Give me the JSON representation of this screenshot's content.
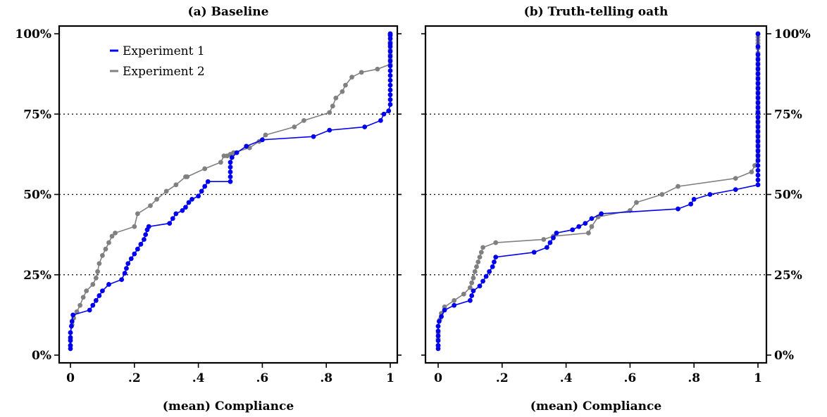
{
  "chart_data": [
    {
      "type": "line",
      "title": "(a) Baseline",
      "xlabel": "(mean) Compliance",
      "ylabel": "",
      "xlim": [
        0,
        1
      ],
      "ylim": [
        0,
        100
      ],
      "xticks": [
        0,
        0.2,
        0.4,
        0.6,
        0.8,
        1
      ],
      "xtick_labels": [
        "0",
        ".2",
        ".4",
        ".6",
        ".8",
        "1"
      ],
      "yticks": [
        0,
        25,
        50,
        75,
        100
      ],
      "ytick_labels": [
        "0%",
        "25%",
        "50%",
        "75%",
        "100%"
      ],
      "y_axis_side": "left",
      "grid": "dotted horizontal at 25%, 50%, 75%",
      "legend": "top-left",
      "series": [
        {
          "name": "Experiment 1",
          "color": "#0000ee",
          "x": [
            0,
            0,
            0,
            0,
            0,
            0.003,
            0.005,
            0.008,
            0.06,
            0.07,
            0.08,
            0.09,
            0.1,
            0.12,
            0.16,
            0.17,
            0.175,
            0.18,
            0.19,
            0.2,
            0.21,
            0.22,
            0.23,
            0.235,
            0.24,
            0.245,
            0.31,
            0.32,
            0.33,
            0.35,
            0.36,
            0.37,
            0.38,
            0.4,
            0.41,
            0.42,
            0.43,
            0.5,
            0.5,
            0.5,
            0.5,
            0.5,
            0.505,
            0.52,
            0.55,
            0.6,
            0.76,
            0.81,
            0.92,
            0.97,
            0.98,
            0.995,
            1,
            1,
            1,
            1,
            1,
            1,
            1,
            1,
            1,
            1,
            1,
            1,
            1,
            1,
            1,
            1,
            1
          ],
          "y": [
            2,
            3,
            4.5,
            5.5,
            7,
            9,
            10.5,
            12.5,
            14,
            15.5,
            17,
            18.5,
            20,
            22,
            23.5,
            25.5,
            27,
            28.5,
            30,
            31.5,
            33,
            34.5,
            36,
            37.5,
            39,
            40,
            41,
            42.5,
            44,
            45,
            46,
            47.5,
            48.5,
            49.5,
            51,
            52.5,
            54,
            54,
            55.5,
            57,
            58.5,
            60,
            61.5,
            63,
            65,
            67,
            68,
            70,
            71,
            73,
            75,
            76,
            78,
            79.5,
            81,
            82.5,
            84,
            85.5,
            87,
            88.5,
            90,
            91.5,
            93,
            94.5,
            96,
            97,
            98.5,
            99.5,
            100
          ]
        },
        {
          "name": "Experiment 2",
          "color": "#808080",
          "x": [
            0,
            0,
            0,
            0.005,
            0.01,
            0.02,
            0.03,
            0.04,
            0.05,
            0.07,
            0.08,
            0.085,
            0.09,
            0.1,
            0.11,
            0.12,
            0.13,
            0.14,
            0.2,
            0.21,
            0.25,
            0.27,
            0.3,
            0.33,
            0.36,
            0.365,
            0.42,
            0.47,
            0.48,
            0.49,
            0.5,
            0.51,
            0.56,
            0.59,
            0.61,
            0.7,
            0.73,
            0.81,
            0.82,
            0.83,
            0.85,
            0.86,
            0.88,
            0.91,
            0.96,
            1,
            1,
            1,
            1,
            1,
            1,
            1,
            1,
            1,
            1
          ],
          "y": [
            3,
            5,
            7,
            9.5,
            11.5,
            13.5,
            15.5,
            18,
            20,
            22,
            24,
            26,
            28.5,
            31,
            33,
            35,
            37,
            38,
            40,
            44,
            46.5,
            48.5,
            51,
            53,
            55.5,
            55.5,
            58,
            60,
            62,
            62,
            62.5,
            63,
            64.5,
            66.5,
            68.5,
            71,
            73,
            75.5,
            77.5,
            80,
            82,
            84,
            86.5,
            88,
            89,
            90.5,
            92,
            93.5,
            95,
            96.5,
            97.5,
            98.5,
            99.5,
            100,
            100
          ]
        }
      ]
    },
    {
      "type": "line",
      "title": "(b) Truth-telling oath",
      "xlabel": "(mean) Compliance",
      "ylabel": "",
      "xlim": [
        0,
        1
      ],
      "ylim": [
        0,
        100
      ],
      "xticks": [
        0,
        0.2,
        0.4,
        0.6,
        0.8,
        1
      ],
      "xtick_labels": [
        "0",
        ".2",
        ".4",
        ".6",
        ".8",
        "1"
      ],
      "yticks": [
        0,
        25,
        50,
        75,
        100
      ],
      "ytick_labels": [
        "0%",
        "25%",
        "50%",
        "75%",
        "100%"
      ],
      "y_axis_side": "right",
      "grid": "dotted horizontal at 25%, 50%, 75%",
      "legend": "none",
      "series": [
        {
          "name": "Experiment 1",
          "color": "#0000ee",
          "x": [
            0,
            0,
            0,
            0,
            0,
            0,
            0.003,
            0.01,
            0.02,
            0.05,
            0.1,
            0.105,
            0.11,
            0.13,
            0.14,
            0.15,
            0.16,
            0.17,
            0.175,
            0.18,
            0.3,
            0.34,
            0.35,
            0.36,
            0.37,
            0.42,
            0.44,
            0.46,
            0.48,
            0.51,
            0.75,
            0.79,
            0.8,
            0.85,
            0.93,
            1,
            1,
            1,
            1,
            1,
            1,
            1,
            1,
            1,
            1,
            1,
            1,
            1,
            1,
            1,
            1,
            1,
            1,
            1,
            1,
            1,
            1,
            1,
            1,
            1,
            1,
            1,
            1,
            1,
            1
          ],
          "y": [
            2,
            3,
            4.5,
            6,
            7.5,
            9,
            10.5,
            12,
            14,
            15.5,
            17,
            18.5,
            20,
            21.5,
            23,
            24.5,
            26,
            27.5,
            29,
            30.5,
            32,
            33.5,
            35,
            36.5,
            38,
            39,
            40,
            41,
            42.5,
            44,
            45.5,
            47,
            48.5,
            50,
            51.5,
            53,
            54.5,
            56,
            57.5,
            59,
            60.5,
            62,
            63.5,
            65,
            66.5,
            68,
            69.5,
            71,
            72.5,
            74,
            75.5,
            77,
            78.5,
            80,
            81.5,
            83,
            84.5,
            86,
            87.5,
            89,
            90.5,
            92,
            93.5,
            96,
            100
          ]
        },
        {
          "name": "Experiment 2",
          "color": "#808080",
          "x": [
            0,
            0,
            0,
            0,
            0.005,
            0.01,
            0.02,
            0.05,
            0.08,
            0.1,
            0.105,
            0.11,
            0.115,
            0.12,
            0.125,
            0.13,
            0.135,
            0.14,
            0.18,
            0.33,
            0.36,
            0.47,
            0.48,
            0.5,
            0.6,
            0.62,
            0.7,
            0.75,
            0.93,
            0.98,
            0.99,
            1,
            1,
            1,
            1,
            1,
            1,
            1,
            1,
            1,
            1,
            1,
            1,
            1,
            1,
            1,
            1,
            1,
            1,
            1,
            1,
            1,
            1,
            1,
            1,
            1,
            1,
            1,
            1,
            1
          ],
          "y": [
            3,
            5,
            7,
            9,
            11,
            13,
            15,
            17,
            19,
            21,
            22.5,
            24,
            26,
            27.5,
            29,
            30.5,
            32,
            33.5,
            35,
            36,
            37,
            38,
            40,
            43,
            45,
            47.5,
            50,
            52.5,
            55,
            57,
            59,
            61,
            62.5,
            64,
            65.5,
            67,
            68.5,
            70,
            71.5,
            73,
            74.5,
            76,
            77.5,
            79,
            80.5,
            82,
            83.5,
            85,
            86.5,
            88,
            89.5,
            91,
            92.5,
            94,
            95.5,
            97,
            98,
            99,
            100,
            100
          ]
        }
      ]
    }
  ]
}
